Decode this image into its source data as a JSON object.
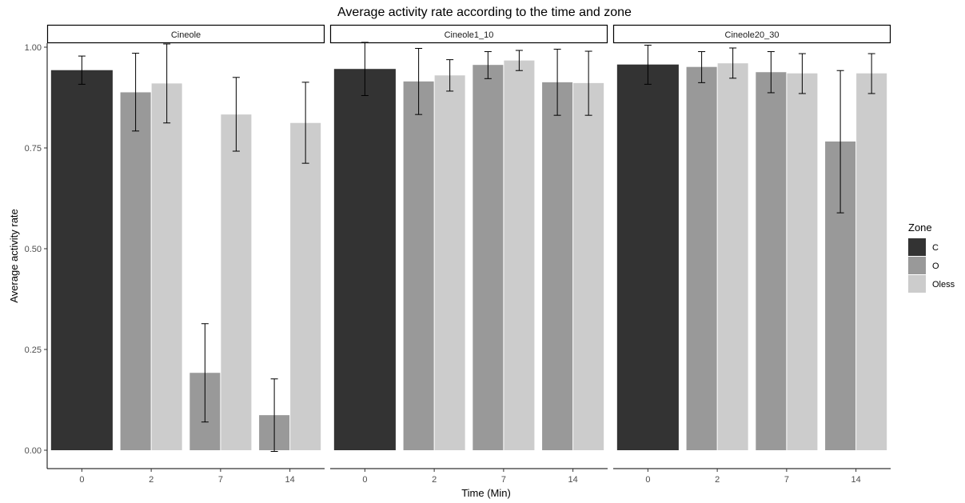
{
  "chart_data": {
    "type": "bar",
    "title": "Average activity rate according to the time and zone",
    "xlabel": "Time (Min)",
    "ylabel": "Average activity rate",
    "ylim": [
      0,
      1.0
    ],
    "y_ticks": [
      "0.00",
      "0.25",
      "0.50",
      "0.75",
      "1.00"
    ],
    "grid": false,
    "legend": {
      "title": "Zone",
      "position": "right"
    },
    "zones": [
      {
        "name": "C",
        "color": "#333333"
      },
      {
        "name": "O",
        "color": "#999999"
      },
      {
        "name": "Oless",
        "color": "#cccccc"
      }
    ],
    "categories": [
      "0",
      "2",
      "7",
      "14"
    ],
    "facets": [
      {
        "label": "Cineole",
        "bars": [
          {
            "time": "0",
            "zone": "C",
            "value": 0.943,
            "err_low": 0.908,
            "err_high": 0.978
          },
          {
            "time": "2",
            "zone": "O",
            "value": 0.888,
            "err_low": 0.792,
            "err_high": 0.985
          },
          {
            "time": "2",
            "zone": "Oless",
            "value": 0.91,
            "err_low": 0.812,
            "err_high": 1.008
          },
          {
            "time": "7",
            "zone": "O",
            "value": 0.192,
            "err_low": 0.07,
            "err_high": 0.314
          },
          {
            "time": "7",
            "zone": "Oless",
            "value": 0.833,
            "err_low": 0.742,
            "err_high": 0.925
          },
          {
            "time": "14",
            "zone": "O",
            "value": 0.087,
            "err_low": -0.003,
            "err_high": 0.177
          },
          {
            "time": "14",
            "zone": "Oless",
            "value": 0.812,
            "err_low": 0.712,
            "err_high": 0.913
          }
        ]
      },
      {
        "label": "Cineole1_10",
        "bars": [
          {
            "time": "0",
            "zone": "C",
            "value": 0.946,
            "err_low": 0.88,
            "err_high": 1.012
          },
          {
            "time": "2",
            "zone": "O",
            "value": 0.915,
            "err_low": 0.833,
            "err_high": 0.997
          },
          {
            "time": "2",
            "zone": "Oless",
            "value": 0.93,
            "err_low": 0.891,
            "err_high": 0.969
          },
          {
            "time": "7",
            "zone": "O",
            "value": 0.956,
            "err_low": 0.922,
            "err_high": 0.989
          },
          {
            "time": "7",
            "zone": "Oless",
            "value": 0.967,
            "err_low": 0.942,
            "err_high": 0.992
          },
          {
            "time": "14",
            "zone": "O",
            "value": 0.913,
            "err_low": 0.831,
            "err_high": 0.995
          },
          {
            "time": "14",
            "zone": "Oless",
            "value": 0.911,
            "err_low": 0.831,
            "err_high": 0.99
          }
        ]
      },
      {
        "label": "Cineole20_30",
        "bars": [
          {
            "time": "0",
            "zone": "C",
            "value": 0.957,
            "err_low": 0.908,
            "err_high": 1.005
          },
          {
            "time": "2",
            "zone": "O",
            "value": 0.951,
            "err_low": 0.912,
            "err_high": 0.989
          },
          {
            "time": "2",
            "zone": "Oless",
            "value": 0.96,
            "err_low": 0.923,
            "err_high": 0.998
          },
          {
            "time": "7",
            "zone": "O",
            "value": 0.938,
            "err_low": 0.887,
            "err_high": 0.989
          },
          {
            "time": "7",
            "zone": "Oless",
            "value": 0.935,
            "err_low": 0.885,
            "err_high": 0.984
          },
          {
            "time": "14",
            "zone": "O",
            "value": 0.766,
            "err_low": 0.589,
            "err_high": 0.942
          },
          {
            "time": "14",
            "zone": "Oless",
            "value": 0.935,
            "err_low": 0.885,
            "err_high": 0.984
          }
        ]
      }
    ]
  }
}
